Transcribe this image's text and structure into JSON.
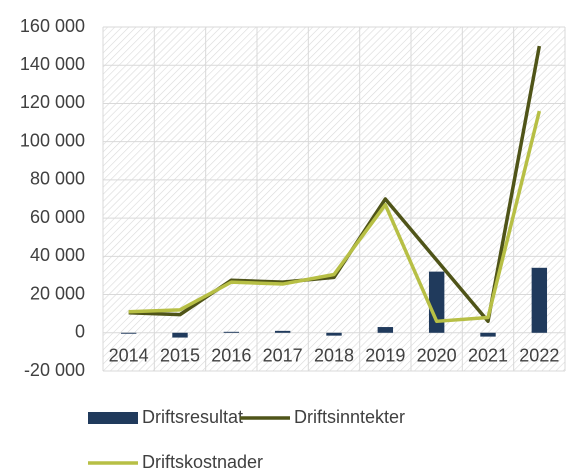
{
  "chart_data": {
    "type": "bar",
    "categories": [
      "2014",
      "2015",
      "2016",
      "2017",
      "2018",
      "2019",
      "2020",
      "2021",
      "2022"
    ],
    "series": [
      {
        "name": "Driftsresultat",
        "type": "bar",
        "color": "#203a5c",
        "values": [
          -500,
          -2500,
          500,
          1000,
          -1500,
          3000,
          32000,
          -2000,
          34000
        ]
      },
      {
        "name": "Driftsinntekter",
        "type": "line",
        "color": "#4f5418",
        "values": [
          10500,
          9500,
          27500,
          26500,
          29000,
          70000,
          38000,
          6000,
          150000
        ]
      },
      {
        "name": "Driftskostnader",
        "type": "line",
        "color": "#b7bf45",
        "values": [
          11000,
          12000,
          26500,
          25500,
          30500,
          67000,
          6000,
          8000,
          116000
        ]
      }
    ],
    "ylim": [
      -20000,
      160000
    ],
    "yticks": [
      {
        "value": -20000,
        "label": "-20 000"
      },
      0,
      {
        "value": 20000,
        "label": "20 000"
      },
      {
        "value": 40000,
        "label": "40 000"
      },
      {
        "value": 60000,
        "label": "60 000"
      },
      {
        "value": 80000,
        "label": "80 000"
      },
      {
        "value": 100000,
        "label": "100 000"
      },
      {
        "value": 120000,
        "label": "120 000"
      },
      {
        "value": 140000,
        "label": "140 000"
      },
      {
        "value": 160000,
        "label": "160 000"
      }
    ],
    "grid": true,
    "legend": "bottom"
  }
}
